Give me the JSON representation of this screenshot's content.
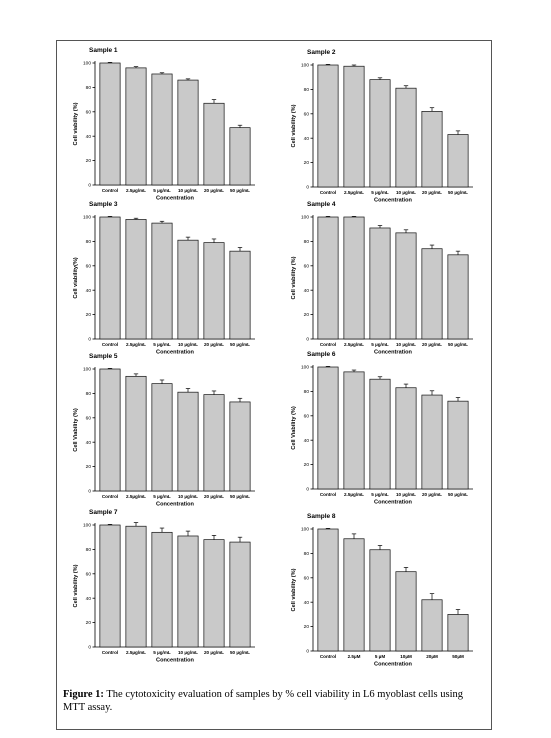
{
  "figure": {
    "caption_label": "Figure 1:",
    "caption_text": " The cytotoxicity evaluation of samples by % cell viability in L6 myoblast cells using MTT assay."
  },
  "colors": {
    "bar_fill": "#c9c9c9",
    "bar_stroke": "#111111",
    "frame": "#555555"
  },
  "chart_data": [
    {
      "type": "bar",
      "title": "Sample 1",
      "ylabel": "Cell viability (%)",
      "xlabel": "Concentration",
      "ylim": [
        0,
        100
      ],
      "yticks": [
        0,
        20,
        40,
        60,
        80,
        100
      ],
      "categories": [
        "Control",
        "2.5µg/mL",
        "5 µg/mL",
        "10 µg/mL",
        "20 µg/mL",
        "50 µg/mL"
      ],
      "values": [
        100,
        96,
        91,
        86,
        67,
        47
      ],
      "errors": [
        0.5,
        1,
        1,
        1,
        3,
        2
      ]
    },
    {
      "type": "bar",
      "title": "Sample 2",
      "ylabel": "Cell viability (%)",
      "xlabel": "Concentration",
      "ylim": [
        0,
        100
      ],
      "yticks": [
        0,
        20,
        40,
        60,
        80,
        100
      ],
      "categories": [
        "Control",
        "2.5µg/mL",
        "5 µg/mL",
        "10 µg/mL",
        "20 µg/mL",
        "50 µg/mL"
      ],
      "values": [
        100,
        99,
        88,
        81,
        62,
        43
      ],
      "errors": [
        0.5,
        1,
        1.5,
        2,
        3,
        3
      ]
    },
    {
      "type": "bar",
      "title": "Sample 3",
      "ylabel": "Cell viability(%)",
      "xlabel": "Concentration",
      "ylim": [
        0,
        100
      ],
      "yticks": [
        0,
        20,
        40,
        60,
        80,
        100
      ],
      "categories": [
        "Control",
        "2.5µg/mL",
        "5 µg/mL",
        "10 µg/mL",
        "20 µg/mL",
        "50 µg/mL"
      ],
      "values": [
        100,
        98,
        95,
        81,
        79,
        72
      ],
      "errors": [
        0.5,
        1,
        1.5,
        2.5,
        3,
        3
      ]
    },
    {
      "type": "bar",
      "title": "Sample 4",
      "ylabel": "Cell viability (%)",
      "xlabel": "Concentration",
      "ylim": [
        0,
        100
      ],
      "yticks": [
        0,
        20,
        40,
        60,
        80,
        100
      ],
      "categories": [
        "Control",
        "2.5µg/mL",
        "5 µg/mL",
        "10 µg/mL",
        "20 µg/mL",
        "50 µg/mL"
      ],
      "values": [
        100,
        100,
        91,
        87,
        74,
        69
      ],
      "errors": [
        0.5,
        0.5,
        2,
        2.5,
        3,
        3
      ]
    },
    {
      "type": "bar",
      "title": "Sample 5",
      "ylabel": "Cell Viability (%)",
      "xlabel": "Concentration",
      "ylim": [
        0,
        100
      ],
      "yticks": [
        0,
        20,
        40,
        60,
        80,
        100
      ],
      "categories": [
        "Control",
        "2.5µg/mL",
        "5 µg/mL",
        "10 µg/mL",
        "20 µg/mL",
        "50 µg/mL"
      ],
      "values": [
        100,
        94,
        88,
        81,
        79,
        73
      ],
      "errors": [
        0.5,
        2,
        3,
        3,
        3,
        3
      ]
    },
    {
      "type": "bar",
      "title": "Sample 6",
      "ylabel": "Cell Viability (%)",
      "xlabel": "Concentration",
      "ylim": [
        0,
        100
      ],
      "yticks": [
        0,
        20,
        40,
        60,
        80,
        100
      ],
      "categories": [
        "Control",
        "2.5µg/mL",
        "5 µg/mL",
        "10 µg/mL",
        "20 µg/mL",
        "50 µg/mL"
      ],
      "values": [
        100,
        96,
        90,
        83,
        77,
        72
      ],
      "errors": [
        0.5,
        1.5,
        2,
        3,
        3.5,
        3
      ]
    },
    {
      "type": "bar",
      "title": "Sample 7",
      "ylabel": "Cell viability (%)",
      "xlabel": "Concentration",
      "ylim": [
        0,
        100
      ],
      "yticks": [
        0,
        20,
        40,
        60,
        80,
        100
      ],
      "categories": [
        "Control",
        "2.5µg/mL",
        "5 µg/mL",
        "10 µg/mL",
        "20 µg/mL",
        "50 µg/mL"
      ],
      "values": [
        100,
        99,
        94,
        91,
        88,
        86
      ],
      "errors": [
        0.5,
        3,
        3.5,
        4,
        3.5,
        4
      ]
    },
    {
      "type": "bar",
      "title": "Sample 8",
      "ylabel": "Cell viability (%)",
      "xlabel": "Concentration",
      "ylim": [
        0,
        100
      ],
      "yticks": [
        0,
        20,
        40,
        60,
        80,
        100
      ],
      "categories": [
        "Control",
        "2.5µM",
        "5 µM",
        "10µM",
        "20µM",
        "50µM"
      ],
      "values": [
        100,
        92,
        83,
        65,
        42,
        30
      ],
      "errors": [
        0.5,
        4,
        3.5,
        3.5,
        5,
        4
      ]
    }
  ]
}
